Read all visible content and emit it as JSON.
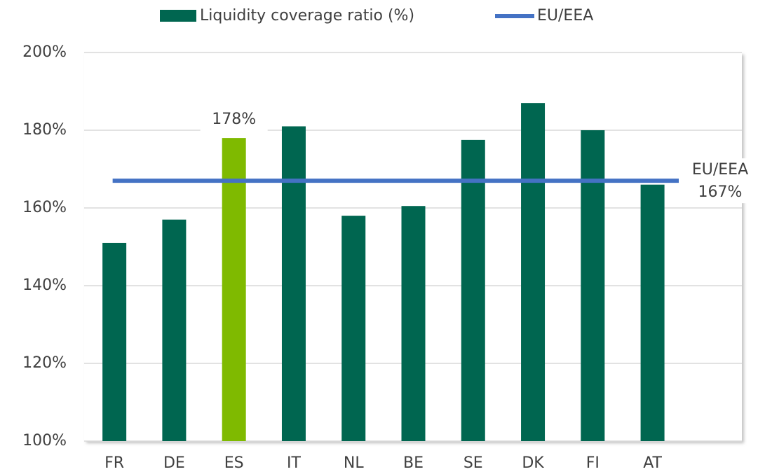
{
  "chart_data": {
    "type": "bar",
    "categories": [
      "FR",
      "DE",
      "ES",
      "IT",
      "NL",
      "BE",
      "SE",
      "DK",
      "FI",
      "AT"
    ],
    "series": [
      {
        "name": "Liquidity coverage ratio (%)",
        "color": "#006650",
        "colors": [
          "#006650",
          "#006650",
          "#7fba00",
          "#006650",
          "#006650",
          "#006650",
          "#006650",
          "#006650",
          "#006650",
          "#006650"
        ],
        "values": [
          151,
          157,
          178,
          181,
          158,
          160.5,
          177.5,
          187,
          180,
          166
        ],
        "value_labels": [
          null,
          null,
          "178%",
          null,
          null,
          null,
          null,
          null,
          null,
          null
        ]
      }
    ],
    "reference_line": {
      "name": "EU/EEA",
      "color": "#4472c4",
      "value": 167,
      "value_label": "167%"
    },
    "ylim": [
      100,
      200
    ],
    "yticks": [
      {
        "value": 100,
        "label": "100%"
      },
      {
        "value": 120,
        "label": "120%"
      },
      {
        "value": 140,
        "label": "140%"
      },
      {
        "value": 160,
        "label": "160%"
      },
      {
        "value": 180,
        "label": "180%"
      },
      {
        "value": 200,
        "label": "200%"
      }
    ],
    "grid": true,
    "legend": "top"
  }
}
